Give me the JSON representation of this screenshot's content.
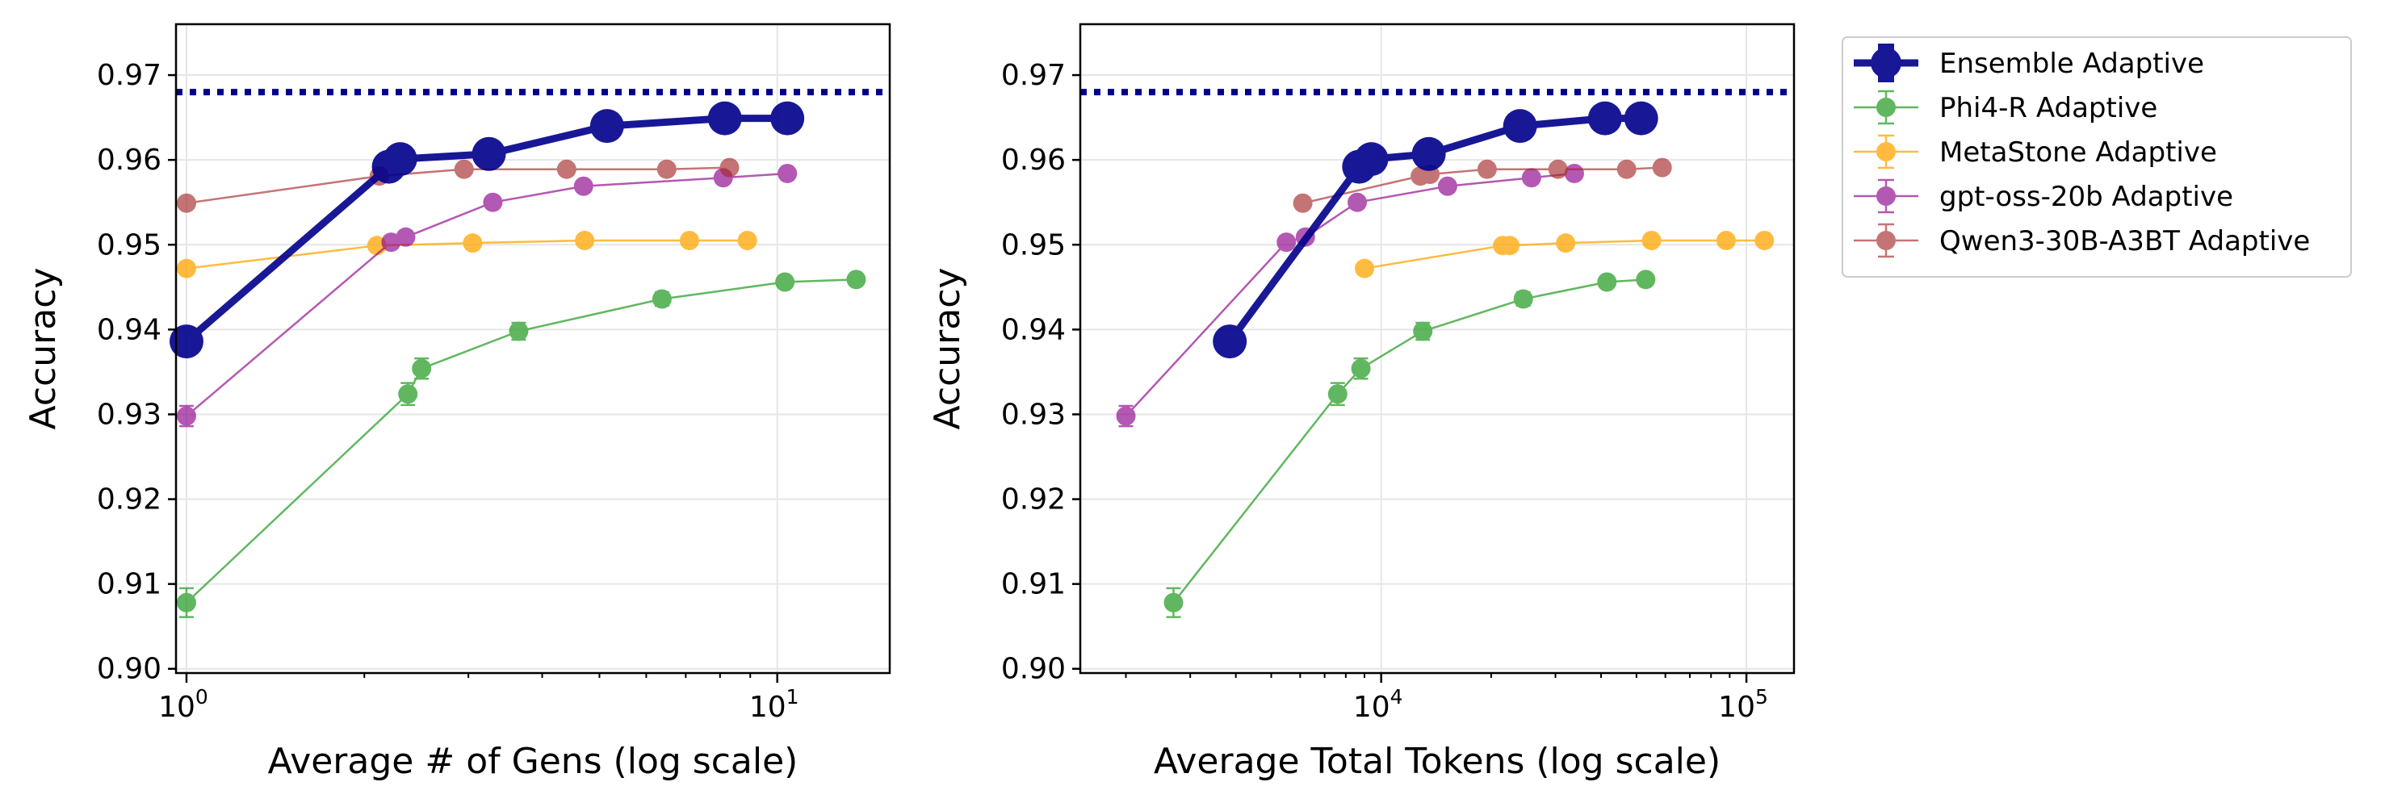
{
  "chart_data": [
    {
      "type": "line",
      "id": "gens",
      "title": "",
      "xlabel": "Average # of Gens (log scale)",
      "ylabel": "Accuracy",
      "xscale": "log",
      "xlim": [
        0.96,
        15.5
      ],
      "ylim": [
        0.8995,
        0.976
      ],
      "xticks": [
        {
          "value": 1,
          "base": "10",
          "exp": "0"
        },
        {
          "value": 10,
          "base": "10",
          "exp": "1"
        }
      ],
      "yticks": [
        "0.90",
        "0.91",
        "0.92",
        "0.93",
        "0.94",
        "0.95",
        "0.96",
        "0.97"
      ],
      "reference_line": 0.968,
      "grid": true,
      "series": [
        {
          "name": "Phi4-R Adaptive",
          "color": "#2ca02c",
          "opacity": 0.75,
          "width": 2.5,
          "marker": "small",
          "x": [
            1.0,
            2.37,
            2.5,
            3.65,
            6.38,
            10.3,
            13.6
          ],
          "y": [
            0.9078,
            0.9324,
            0.9354,
            0.9398,
            0.9436,
            0.9456,
            0.9459
          ],
          "err": [
            0.0017,
            0.0013,
            0.0012,
            0.001,
            0.0008,
            0.0006,
            0.0005
          ]
        },
        {
          "name": "MetaStone Adaptive",
          "color": "#ffa500",
          "opacity": 0.75,
          "width": 2.5,
          "marker": "small",
          "x": [
            1.0,
            2.1,
            3.05,
            4.72,
            7.1,
            8.9
          ],
          "y": [
            0.9472,
            0.9499,
            0.9502,
            0.9505,
            0.9505,
            0.9505
          ],
          "err": [
            0.0007,
            0.0006,
            0.0005,
            0.0004,
            0.0004,
            0.0004
          ]
        },
        {
          "name": "gpt-oss-20b Adaptive",
          "color": "#8b008b",
          "opacity": 0.65,
          "width": 2.5,
          "marker": "small",
          "x": [
            1.0,
            2.22,
            2.35,
            3.3,
            4.7,
            8.1,
            10.4
          ],
          "y": [
            0.9298,
            0.9503,
            0.9509,
            0.955,
            0.9569,
            0.9579,
            0.9584
          ],
          "err": [
            0.0012,
            0.0007,
            0.0006,
            0.0005,
            0.0004,
            0.0004,
            0.0003
          ]
        },
        {
          "name": "Qwen3-30B-A3BT Adaptive",
          "color": "#a52a2a",
          "opacity": 0.65,
          "width": 2.5,
          "marker": "small",
          "x": [
            1.0,
            2.12,
            2.95,
            4.4,
            6.5,
            8.3
          ],
          "y": [
            0.9549,
            0.9581,
            0.9589,
            0.9589,
            0.9589,
            0.9591
          ],
          "err": [
            0.0006,
            0.0004,
            0.0004,
            0.0004,
            0.0004,
            0.0004
          ]
        },
        {
          "name": "Ensemble Adaptive",
          "color": "#00008b",
          "opacity": 0.9,
          "width": 9,
          "marker": "large",
          "x": [
            1.0,
            2.2,
            2.3,
            3.25,
            5.15,
            8.15,
            10.4
          ],
          "y": [
            0.9386,
            0.9592,
            0.9601,
            0.9607,
            0.964,
            0.9649,
            0.9649
          ],
          "err": [
            0.0,
            0.0,
            0.0,
            0.0,
            0.0,
            0.0,
            0.0
          ]
        }
      ]
    },
    {
      "type": "line",
      "id": "tokens",
      "title": "",
      "xlabel": "Average Total Tokens (log scale)",
      "ylabel": "Accuracy",
      "xscale": "log",
      "xlim": [
        1500,
        135000
      ],
      "ylim": [
        0.8995,
        0.976
      ],
      "xticks": [
        {
          "value": 10000,
          "base": "10",
          "exp": "4"
        },
        {
          "value": 100000,
          "base": "10",
          "exp": "5"
        }
      ],
      "yticks": [
        "0.90",
        "0.91",
        "0.92",
        "0.93",
        "0.94",
        "0.95",
        "0.96",
        "0.97"
      ],
      "reference_line": 0.968,
      "grid": true,
      "series": [
        {
          "name": "Phi4-R Adaptive",
          "color": "#2ca02c",
          "opacity": 0.75,
          "width": 2.5,
          "marker": "small",
          "x": [
            2700,
            7600,
            8800,
            13000,
            24500,
            41500,
            53000
          ],
          "y": [
            0.9078,
            0.9324,
            0.9354,
            0.9398,
            0.9436,
            0.9456,
            0.9459
          ],
          "err": [
            0.0017,
            0.0013,
            0.0012,
            0.001,
            0.0008,
            0.0006,
            0.0005
          ]
        },
        {
          "name": "MetaStone Adaptive",
          "color": "#ffa500",
          "opacity": 0.75,
          "width": 2.5,
          "marker": "small",
          "x": [
            9000,
            21500,
            22500,
            32000,
            55000,
            88000,
            112000
          ],
          "y": [
            0.9472,
            0.9499,
            0.9499,
            0.9502,
            0.9505,
            0.9505,
            0.9505
          ],
          "err": [
            0.0007,
            0.0006,
            0.0006,
            0.0005,
            0.0004,
            0.0004,
            0.0004
          ]
        },
        {
          "name": "gpt-oss-20b Adaptive",
          "color": "#8b008b",
          "opacity": 0.65,
          "width": 2.5,
          "marker": "small",
          "x": [
            2000,
            5500,
            6200,
            8600,
            15200,
            25800,
            33800
          ],
          "y": [
            0.9298,
            0.9503,
            0.9509,
            0.955,
            0.9569,
            0.9579,
            0.9584
          ],
          "err": [
            0.0012,
            0.0007,
            0.0006,
            0.0005,
            0.0004,
            0.0004,
            0.0003
          ]
        },
        {
          "name": "Qwen3-30B-A3BT Adaptive",
          "color": "#a52a2a",
          "opacity": 0.65,
          "width": 2.5,
          "marker": "small",
          "x": [
            6100,
            12800,
            13600,
            19500,
            30500,
            47000,
            58800
          ],
          "y": [
            0.9549,
            0.9581,
            0.9583,
            0.9589,
            0.9589,
            0.9589,
            0.9591
          ],
          "err": [
            0.0006,
            0.0004,
            0.0004,
            0.0004,
            0.0004,
            0.0004,
            0.0004
          ]
        },
        {
          "name": "Ensemble Adaptive",
          "color": "#00008b",
          "opacity": 0.9,
          "width": 9,
          "marker": "large",
          "x": [
            3850,
            8700,
            9400,
            13500,
            24000,
            41000,
            51500
          ],
          "y": [
            0.9386,
            0.9592,
            0.9601,
            0.9607,
            0.964,
            0.9649,
            0.9649
          ],
          "err": [
            0.0,
            0.0,
            0.0,
            0.0,
            0.0,
            0.0,
            0.0
          ]
        }
      ]
    }
  ],
  "legend": {
    "placement": "outside-right",
    "entries": [
      {
        "label": "Ensemble Adaptive",
        "color": "#00008b",
        "opacity": 0.9,
        "marker": "large"
      },
      {
        "label": "Phi4-R Adaptive",
        "color": "#2ca02c",
        "opacity": 0.75,
        "marker": "small"
      },
      {
        "label": "MetaStone Adaptive",
        "color": "#ffa500",
        "opacity": 0.75,
        "marker": "small"
      },
      {
        "label": "gpt-oss-20b Adaptive",
        "color": "#8b008b",
        "opacity": 0.65,
        "marker": "small"
      },
      {
        "label": "Qwen3-30B-A3BT Adaptive",
        "color": "#a52a2a",
        "opacity": 0.65,
        "marker": "small"
      }
    ]
  }
}
